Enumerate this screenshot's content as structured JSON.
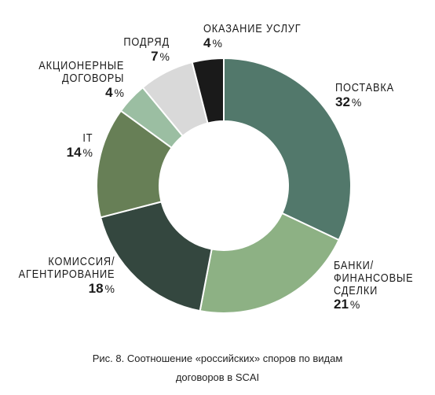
{
  "chart_data": {
    "type": "pie",
    "donut": true,
    "categories": [
      "ПОСТАВКА",
      "БАНКИ/ ФИНАНСОВЫЕ СДЕЛКИ",
      "КОМИССИЯ/ АГЕНТИРОВАНИЕ",
      "IT",
      "АКЦИОНЕРНЫЕ ДОГОВОРЫ",
      "ПОДРЯД",
      "ОКАЗАНИЕ УСЛУГ"
    ],
    "values": [
      32,
      21,
      18,
      14,
      4,
      7,
      4
    ],
    "unit": "%",
    "colors": [
      "#52786b",
      "#8db184",
      "#34473f",
      "#677f56",
      "#9bbea2",
      "#d9d9d9",
      "#1a1a1a"
    ],
    "labels": [
      {
        "line1": "ПОСТАВКА",
        "line2": "",
        "line3": "",
        "value": "32"
      },
      {
        "line1": "БАНКИ/",
        "line2": "ФИНАНСОВЫЕ",
        "line3": "СДЕЛКИ",
        "value": "21"
      },
      {
        "line1": "КОМИССИЯ/",
        "line2": "АГЕНТИРОВАНИЕ",
        "line3": "",
        "value": "18"
      },
      {
        "line1": "IT",
        "line2": "",
        "line3": "",
        "value": "14"
      },
      {
        "line1": "АКЦИОНЕРНЫЕ",
        "line2": "ДОГОВОРЫ",
        "line3": "",
        "value": "4"
      },
      {
        "line1": "ПОДРЯД",
        "line2": "",
        "line3": "",
        "value": "7"
      },
      {
        "line1": "ОКАЗАНИЕ УСЛУГ",
        "line2": "",
        "line3": "",
        "value": "4"
      }
    ],
    "legend": "none"
  },
  "caption": {
    "line1": "Рис. 8. Соотношение «российских» споров по видам",
    "line2": "договоров в SCAI"
  }
}
